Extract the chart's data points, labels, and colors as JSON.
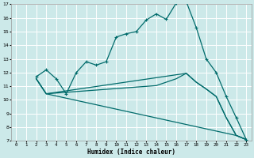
{
  "xlabel": "Humidex (Indice chaleur)",
  "xlim": [
    -0.5,
    23.5
  ],
  "ylim": [
    7,
    17
  ],
  "xticks": [
    0,
    1,
    2,
    3,
    4,
    5,
    6,
    7,
    8,
    9,
    10,
    11,
    12,
    13,
    14,
    15,
    16,
    17,
    18,
    19,
    20,
    21,
    22,
    23
  ],
  "yticks": [
    7,
    8,
    9,
    10,
    11,
    12,
    13,
    14,
    15,
    16,
    17
  ],
  "bg_color": "#cce9e9",
  "grid_color": "#ffffff",
  "line_color": "#006b6b",
  "line1": {
    "x": [
      2,
      3,
      4,
      5,
      6,
      7,
      8,
      9,
      10,
      11,
      12,
      13,
      14,
      15,
      16,
      17,
      18,
      19,
      20,
      21,
      22,
      23
    ],
    "y": [
      11.7,
      12.2,
      11.55,
      10.45,
      12.0,
      12.8,
      12.55,
      12.8,
      14.6,
      14.85,
      15.0,
      15.85,
      16.3,
      15.9,
      17.1,
      17.2,
      15.3,
      13.0,
      12.0,
      10.25,
      8.7,
      7.1
    ]
  },
  "line2": {
    "x": [
      2,
      3,
      22,
      23
    ],
    "y": [
      11.55,
      10.45,
      7.4,
      7.1
    ]
  },
  "line3": {
    "x": [
      2,
      3,
      17,
      18,
      19,
      20,
      21,
      22,
      23
    ],
    "y": [
      11.55,
      10.45,
      11.95,
      11.3,
      10.8,
      10.25,
      8.7,
      7.4,
      7.1
    ]
  },
  "line4": {
    "x": [
      2,
      3,
      14,
      15,
      16,
      17,
      18,
      19,
      20,
      21,
      22,
      23
    ],
    "y": [
      11.55,
      10.45,
      11.05,
      11.3,
      11.55,
      11.95,
      11.3,
      10.8,
      10.25,
      8.7,
      7.4,
      7.1
    ]
  }
}
